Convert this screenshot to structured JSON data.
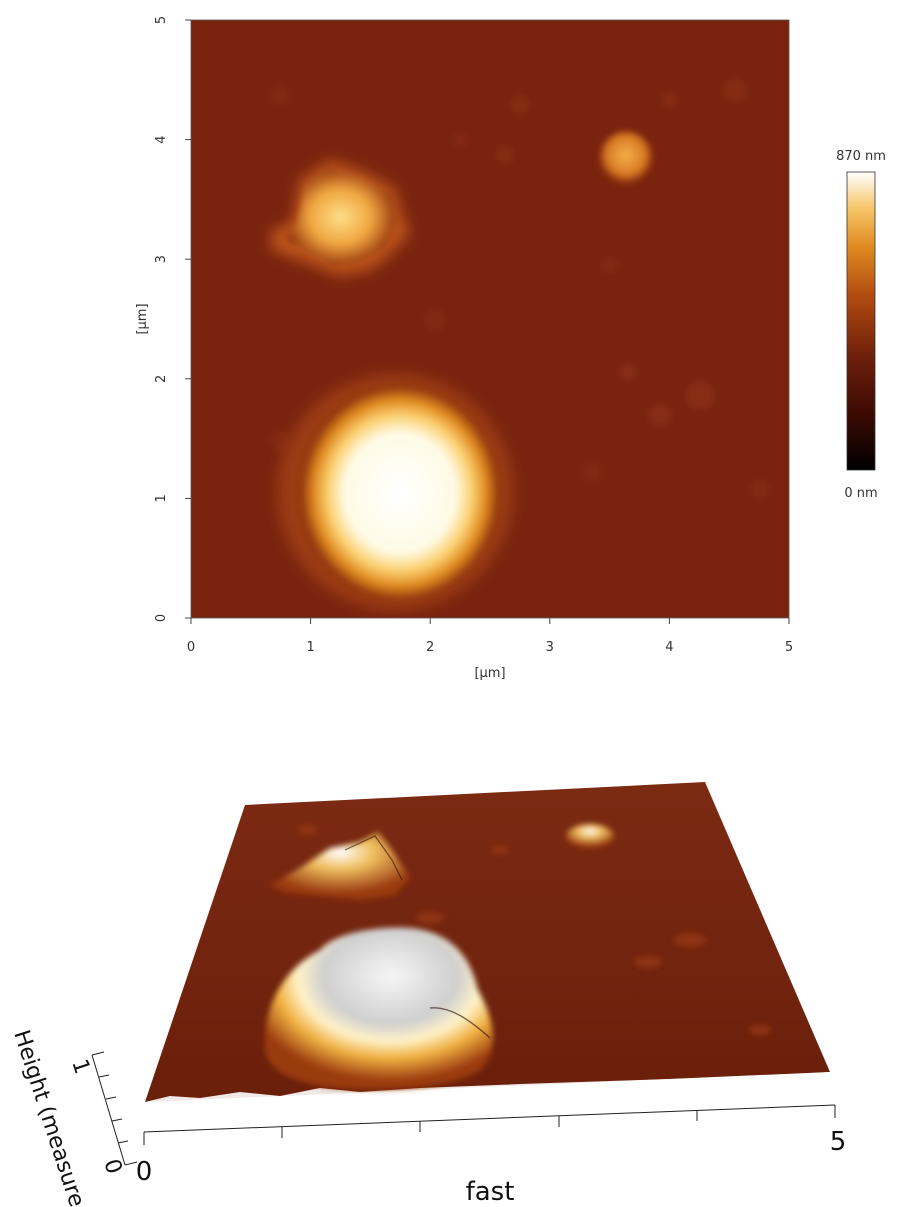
{
  "chart_data": [
    {
      "type": "heatmap",
      "title": "",
      "xlabel": "[µm]",
      "ylabel": "[µm]",
      "xlim": [
        0,
        5
      ],
      "ylim": [
        0,
        5
      ],
      "x_ticks": [
        "0",
        "1",
        "2",
        "3",
        "4",
        "5"
      ],
      "y_ticks": [
        "0",
        "1",
        "2",
        "3",
        "4",
        "5"
      ],
      "grid": false,
      "colorbar": {
        "max_label": "870 nm",
        "min_label": "0 nm",
        "range_nm": [
          0,
          870
        ],
        "colors": [
          "#000000",
          "#3a0a02",
          "#6e1f0b",
          "#b04a10",
          "#e08a20",
          "#f7c66a",
          "#ffffff"
        ]
      },
      "features": [
        {
          "name": "large particle",
          "x_um": 1.75,
          "y_um": 1.1,
          "height_nm": 870
        },
        {
          "name": "irregular particle",
          "x_um": 1.35,
          "y_um": 3.4,
          "height_nm": 560
        },
        {
          "name": "small particle",
          "x_um": 3.65,
          "y_um": 3.85,
          "height_nm": 430
        }
      ],
      "background_height_nm": 200
    },
    {
      "type": "surface3d",
      "xlabel": "fast",
      "zlabel": "Height (measured)",
      "x_tick_labels": [
        "0",
        "5"
      ],
      "z_tick_labels": [
        "0",
        "1"
      ]
    }
  ]
}
